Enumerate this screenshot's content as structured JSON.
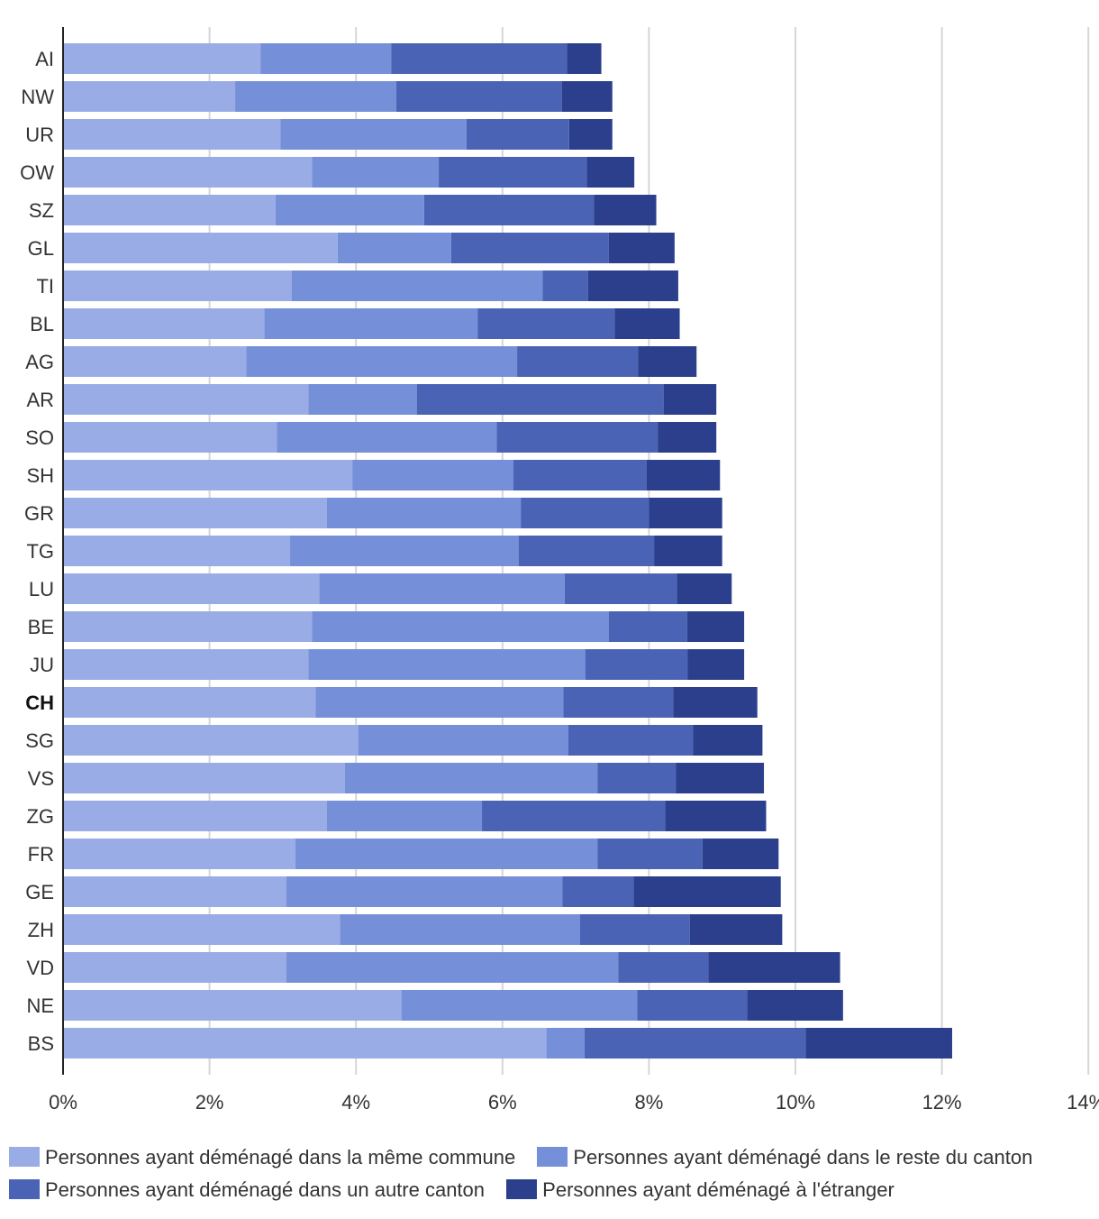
{
  "chart_data": {
    "type": "bar",
    "orientation": "horizontal",
    "stacked": true,
    "title": "",
    "xlabel": "",
    "ylabel": "",
    "xlim": [
      0,
      14
    ],
    "x_ticks": [
      "0%",
      "2%",
      "4%",
      "6%",
      "8%",
      "10%",
      "12%",
      "14%"
    ],
    "grid": true,
    "legend_position": "bottom",
    "highlight_category": "CH",
    "categories": [
      "AI",
      "NW",
      "UR",
      "OW",
      "SZ",
      "GL",
      "TI",
      "BL",
      "AG",
      "AR",
      "SO",
      "SH",
      "GR",
      "TG",
      "LU",
      "BE",
      "JU",
      "CH",
      "SG",
      "VS",
      "ZG",
      "FR",
      "GE",
      "ZH",
      "VD",
      "NE",
      "BS"
    ],
    "series": [
      {
        "name": "Personnes ayant déménagé dans la même commune",
        "color": "#9aace6",
        "values": [
          2.7,
          2.35,
          2.97,
          3.4,
          2.9,
          3.75,
          3.12,
          2.75,
          2.5,
          3.35,
          2.92,
          3.95,
          3.6,
          3.1,
          3.5,
          3.4,
          3.35,
          3.45,
          4.03,
          3.85,
          3.6,
          3.17,
          3.05,
          3.78,
          3.05,
          4.62,
          6.6
        ]
      },
      {
        "name": "Personnes ayant déménagé dans le reste du canton",
        "color": "#7590d9",
        "values": [
          1.78,
          2.2,
          2.54,
          1.73,
          2.03,
          1.55,
          3.43,
          2.91,
          3.7,
          1.48,
          3.0,
          2.2,
          2.65,
          3.12,
          3.35,
          4.05,
          3.78,
          3.38,
          2.87,
          3.45,
          2.12,
          4.13,
          3.77,
          3.28,
          4.53,
          3.22,
          0.52
        ]
      },
      {
        "name": "Personnes ayant déménagé dans un autre canton",
        "color": "#4a63b5",
        "values": [
          2.4,
          2.26,
          1.4,
          2.02,
          2.32,
          2.15,
          0.62,
          1.87,
          1.65,
          3.37,
          2.2,
          1.82,
          1.75,
          1.85,
          1.53,
          1.07,
          1.4,
          1.5,
          1.7,
          1.07,
          2.5,
          1.43,
          0.97,
          1.5,
          1.23,
          1.5,
          3.02
        ]
      },
      {
        "name": "Personnes ayant déménagé à l'étranger",
        "color": "#2b3f8c",
        "values": [
          0.47,
          0.69,
          0.59,
          0.65,
          0.85,
          0.9,
          1.23,
          0.89,
          0.8,
          0.72,
          0.8,
          1.0,
          1.0,
          0.93,
          0.75,
          0.78,
          0.77,
          1.15,
          0.95,
          1.2,
          1.38,
          1.04,
          2.01,
          1.26,
          1.8,
          1.31,
          2.0
        ]
      }
    ]
  },
  "legend": {
    "items": [
      "Personnes ayant déménagé dans la même commune",
      "Personnes ayant déménagé dans le reste du canton",
      "Personnes ayant déménagé dans un autre canton",
      "Personnes ayant déménagé à l'étranger"
    ],
    "colors": [
      "#9aace6",
      "#7590d9",
      "#4a63b5",
      "#2b3f8c"
    ]
  }
}
